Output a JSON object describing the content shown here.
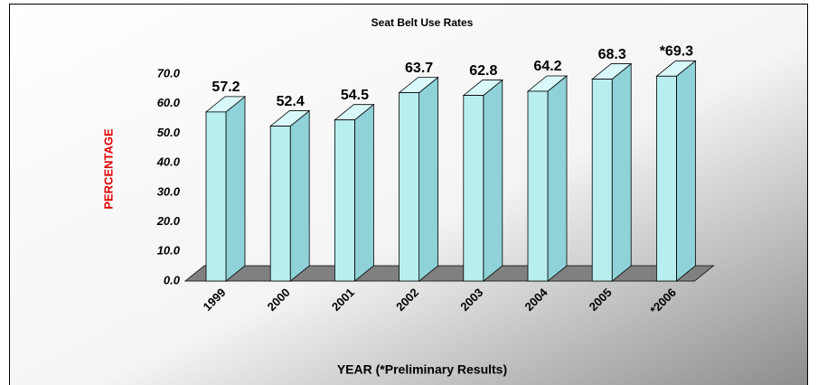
{
  "chart_data": {
    "type": "bar3d",
    "title": "Seat Belt Use Rates",
    "categories": [
      "1999",
      "2000",
      "2001",
      "2002",
      "2003",
      "2004",
      "2005",
      "*2006"
    ],
    "values": [
      57.2,
      52.4,
      54.5,
      63.7,
      62.8,
      64.2,
      68.3,
      69.3
    ],
    "value_labels": [
      "57.2",
      "52.4",
      "54.5",
      "63.7",
      "62.8",
      "64.2",
      "68.3",
      "*69.3"
    ],
    "color": "#b9eef0",
    "ylim": [
      0,
      70
    ],
    "yticks": [
      {
        "value": 0,
        "label": "0.0"
      },
      {
        "value": 10,
        "label": "10.0"
      },
      {
        "value": 20,
        "label": "20.0"
      },
      {
        "value": 30,
        "label": "30.0"
      },
      {
        "value": 40,
        "label": "40.0"
      },
      {
        "value": 50,
        "label": "50.0"
      },
      {
        "value": 60,
        "label": "60.0"
      },
      {
        "value": 70,
        "label": "70.0"
      }
    ],
    "ylabel": "PERCENTAGE",
    "xlabel": "YEAR (*Preliminary Results)",
    "grid": false
  }
}
